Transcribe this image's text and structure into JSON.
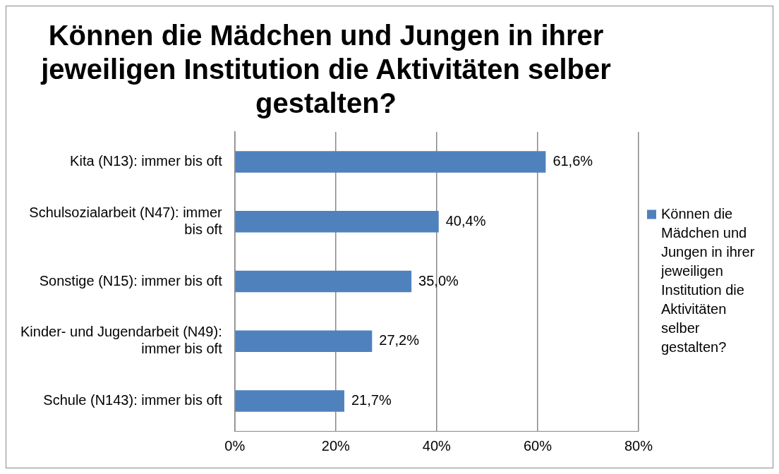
{
  "chart_data": {
    "type": "bar",
    "orientation": "horizontal",
    "title": "Können die Mädchen und Jungen in ihrer jeweiligen Institution die Aktivitäten selber gestalten?",
    "categories": [
      "Kita (N13): immer bis oft",
      "Schulsozialarbeit (N47): immer bis oft",
      "Sonstige (N15): immer bis oft",
      "Kinder- und Jugendarbeit (N49): immer bis oft",
      "Schule (N143): immer bis oft"
    ],
    "series": [
      {
        "name": "Können die Mädchen und Jungen in ihrer jeweiligen Institution die Aktivitäten selber gestalten?",
        "color": "#4f81bd",
        "values": [
          61.6,
          40.4,
          35.0,
          27.2,
          21.7
        ],
        "value_labels": [
          "61,6%",
          "40,4%",
          "35,0%",
          "27,2%",
          "21,7%"
        ]
      }
    ],
    "xlim": [
      0,
      80
    ],
    "xticks": [
      {
        "value": 0,
        "label": "0%"
      },
      {
        "value": 20,
        "label": "20%"
      },
      {
        "value": 40,
        "label": "40%"
      },
      {
        "value": 60,
        "label": "60%"
      },
      {
        "value": 80,
        "label": "80%"
      }
    ],
    "grid": "x",
    "legend": "right"
  }
}
